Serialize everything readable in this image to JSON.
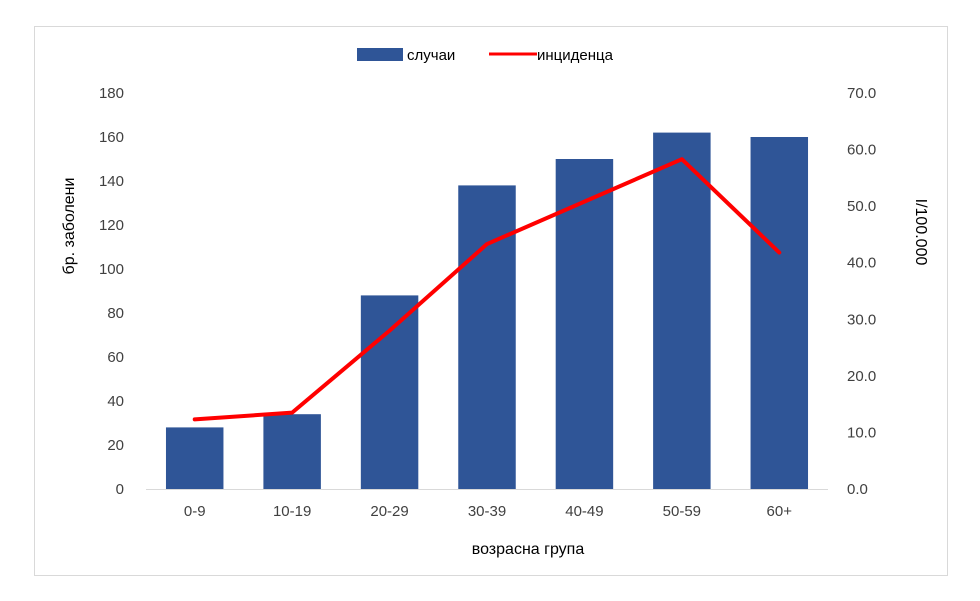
{
  "chart_data": {
    "type": "bar",
    "categories": [
      "0-9",
      "10-19",
      "20-29",
      "30-39",
      "40-49",
      "50-59",
      "60+"
    ],
    "series": [
      {
        "name": "случаи",
        "type": "bar",
        "axis": "left",
        "color": "#2F5597",
        "values": [
          28,
          34,
          88,
          138,
          150,
          162,
          160
        ]
      },
      {
        "name": "инциденца",
        "type": "line",
        "axis": "right",
        "color": "#FF0000",
        "values": [
          12.3,
          13.5,
          28.0,
          43.3,
          50.8,
          58.3,
          41.8
        ]
      }
    ],
    "xlabel": "возрасна група",
    "ylabel": "бр. заболени",
    "y2label": "I/100.000",
    "ylim": [
      0,
      180
    ],
    "y2lim": [
      0,
      70
    ],
    "yticks": [
      "0",
      "20",
      "40",
      "60",
      "80",
      "100",
      "120",
      "140",
      "160",
      "180"
    ],
    "y2ticks": [
      "0.0",
      "10.0",
      "20.0",
      "30.0",
      "40.0",
      "50.0",
      "60.0",
      "70.0"
    ],
    "grid": false,
    "legend": "top-center"
  }
}
